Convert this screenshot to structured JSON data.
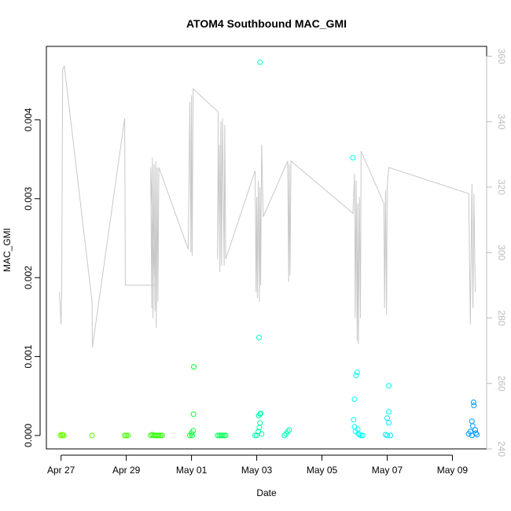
{
  "chart_data": {
    "type": "scatter",
    "title": "ATOM4 Southbound MAC_GMI",
    "xlabel": "Date",
    "ylabel": "MAC_GMI",
    "x_ticks": [
      "Apr 27",
      "Apr 29",
      "May 01",
      "May 03",
      "May 05",
      "May 07",
      "May 09"
    ],
    "x_tick_days": [
      0,
      2,
      4,
      6,
      8,
      10,
      12
    ],
    "xlim_days": [
      -0.45,
      13.05
    ],
    "y_ticks": [
      "0.000",
      "0.001",
      "0.002",
      "0.003",
      "0.004"
    ],
    "y_tick_values": [
      0,
      0.001,
      0.002,
      0.003,
      0.004
    ],
    "ylim": [
      -0.00017,
      0.00493
    ],
    "y2_ticks": [
      "240",
      "260",
      "280",
      "300",
      "320",
      "340",
      "360"
    ],
    "y2_tick_values": [
      240,
      260,
      280,
      300,
      320,
      340,
      360
    ],
    "y2lim": [
      240,
      363
    ],
    "grid": false,
    "series": [
      {
        "type": "scatter",
        "marker": "open-circle",
        "points": [
          {
            "x": -0.02,
            "y": 0.0,
            "c": "#66ff00"
          },
          {
            "x": 0.02,
            "y": 1e-05,
            "c": "#66ff00"
          },
          {
            "x": 0.05,
            "y": 0.0,
            "c": "#66ff00"
          },
          {
            "x": 0.08,
            "y": 0.0,
            "c": "#66ff00"
          },
          {
            "x": 0.95,
            "y": 0.0,
            "c": "#5cff00"
          },
          {
            "x": 1.95,
            "y": 0.0,
            "c": "#44ff00"
          },
          {
            "x": 2.0,
            "y": 0.0,
            "c": "#44ff00"
          },
          {
            "x": 2.05,
            "y": 0.0,
            "c": "#44ff00"
          },
          {
            "x": 2.75,
            "y": 0.0,
            "c": "#2bff00"
          },
          {
            "x": 2.8,
            "y": 1e-05,
            "c": "#2bff00"
          },
          {
            "x": 2.85,
            "y": 0.0,
            "c": "#2bff00"
          },
          {
            "x": 2.9,
            "y": 0.0,
            "c": "#2bff00"
          },
          {
            "x": 2.95,
            "y": 0.0,
            "c": "#2bff00"
          },
          {
            "x": 3.0,
            "y": 0.0,
            "c": "#2bff00"
          },
          {
            "x": 3.05,
            "y": 0.0,
            "c": "#2bff00"
          },
          {
            "x": 3.1,
            "y": 0.0,
            "c": "#2bff00"
          },
          {
            "x": 3.95,
            "y": 0.0,
            "c": "#00ff33"
          },
          {
            "x": 4.0,
            "y": 3e-05,
            "c": "#00ff33"
          },
          {
            "x": 4.05,
            "y": 6e-05,
            "c": "#00ff33"
          },
          {
            "x": 4.07,
            "y": 0.00087,
            "c": "#00ff33"
          },
          {
            "x": 4.06,
            "y": 0.00027,
            "c": "#00ff33"
          },
          {
            "x": 4.02,
            "y": 0.0,
            "c": "#00ff33"
          },
          {
            "x": 4.8,
            "y": 0.0,
            "c": "#00ff55"
          },
          {
            "x": 4.85,
            "y": 0.0,
            "c": "#00ff55"
          },
          {
            "x": 4.9,
            "y": 0.0,
            "c": "#00ff55"
          },
          {
            "x": 4.95,
            "y": 0.0,
            "c": "#00ff55"
          },
          {
            "x": 5.0,
            "y": 0.0,
            "c": "#00ff55"
          },
          {
            "x": 5.05,
            "y": 0.0,
            "c": "#00ff55"
          },
          {
            "x": 5.95,
            "y": 0.0,
            "c": "#00ffaa"
          },
          {
            "x": 6.0,
            "y": 0.0,
            "c": "#00ffaa"
          },
          {
            "x": 6.05,
            "y": 5e-05,
            "c": "#00ffaa"
          },
          {
            "x": 6.08,
            "y": 0.0001,
            "c": "#00ffaa"
          },
          {
            "x": 6.1,
            "y": 0.00016,
            "c": "#00ffaa"
          },
          {
            "x": 6.06,
            "y": 0.00025,
            "c": "#00ffaa"
          },
          {
            "x": 6.1,
            "y": 0.00027,
            "c": "#00ffaa"
          },
          {
            "x": 6.12,
            "y": 0.00028,
            "c": "#00ffaa"
          },
          {
            "x": 6.07,
            "y": 0.00124,
            "c": "#00ffcc"
          },
          {
            "x": 6.1,
            "y": 0.00473,
            "c": "#00ffcc"
          },
          {
            "x": 6.15,
            "y": 2e-05,
            "c": "#00ffaa"
          },
          {
            "x": 6.85,
            "y": 0.0,
            "c": "#00ffbb"
          },
          {
            "x": 6.9,
            "y": 2e-05,
            "c": "#00ffbb"
          },
          {
            "x": 6.95,
            "y": 5e-05,
            "c": "#00ffbb"
          },
          {
            "x": 7.0,
            "y": 7e-05,
            "c": "#00ffbb"
          },
          {
            "x": 8.95,
            "y": 0.00352,
            "c": "#00ffff"
          },
          {
            "x": 8.97,
            "y": 0.0002,
            "c": "#00ffff"
          },
          {
            "x": 9.0,
            "y": 0.00011,
            "c": "#00ffff"
          },
          {
            "x": 9.03,
            "y": 5e-05,
            "c": "#00ffff"
          },
          {
            "x": 9.05,
            "y": 0.00076,
            "c": "#00ffff"
          },
          {
            "x": 9.08,
            "y": 0.0008,
            "c": "#00ffff"
          },
          {
            "x": 9.0,
            "y": 0.00046,
            "c": "#00ffff"
          },
          {
            "x": 9.1,
            "y": 8e-05,
            "c": "#00ffff"
          },
          {
            "x": 9.12,
            "y": 2e-05,
            "c": "#00ffff"
          },
          {
            "x": 9.15,
            "y": 1e-05,
            "c": "#00ffff"
          },
          {
            "x": 9.2,
            "y": 0.0,
            "c": "#00ffff"
          },
          {
            "x": 9.25,
            "y": 0.0,
            "c": "#00ffff"
          },
          {
            "x": 9.95,
            "y": 1e-05,
            "c": "#00eeff"
          },
          {
            "x": 10.0,
            "y": 0.0,
            "c": "#00eeff"
          },
          {
            "x": 10.05,
            "y": 0.00063,
            "c": "#00eeff"
          },
          {
            "x": 10.05,
            "y": 0.0003,
            "c": "#00eeff"
          },
          {
            "x": 10.0,
            "y": 0.00022,
            "c": "#00eeff"
          },
          {
            "x": 10.05,
            "y": 0.00016,
            "c": "#00eeff"
          },
          {
            "x": 10.1,
            "y": 0.0,
            "c": "#00eeff"
          },
          {
            "x": 12.5,
            "y": 2e-05,
            "c": "#0099ff"
          },
          {
            "x": 12.55,
            "y": 5e-05,
            "c": "#0099ff"
          },
          {
            "x": 12.6,
            "y": 0.00018,
            "c": "#0099ff"
          },
          {
            "x": 12.62,
            "y": 0.00012,
            "c": "#0099ff"
          },
          {
            "x": 12.65,
            "y": 0.00042,
            "c": "#0099ff"
          },
          {
            "x": 12.66,
            "y": 0.00038,
            "c": "#0099ff"
          },
          {
            "x": 12.7,
            "y": 7e-05,
            "c": "#0099ff"
          },
          {
            "x": 12.72,
            "y": 3e-05,
            "c": "#0099ff"
          },
          {
            "x": 12.75,
            "y": 1e-05,
            "c": "#0099ff"
          },
          {
            "x": 12.6,
            "y": 0.0,
            "c": "#0099ff"
          }
        ]
      },
      {
        "type": "line",
        "axis": "right",
        "color": "#c8c8c8",
        "points": [
          [
            -0.05,
            288
          ],
          [
            0.0,
            278
          ],
          [
            0.02,
            289
          ],
          [
            0.05,
            356
          ],
          [
            0.1,
            357
          ],
          [
            0.95,
            285
          ],
          [
            0.96,
            271
          ],
          [
            1.95,
            341
          ],
          [
            1.97,
            290
          ],
          [
            2.88,
            290
          ],
          [
            2.75,
            326
          ],
          [
            2.78,
            283
          ],
          [
            2.8,
            329
          ],
          [
            2.82,
            280
          ],
          [
            2.85,
            327
          ],
          [
            2.88,
            282
          ],
          [
            2.9,
            328
          ],
          [
            2.92,
            277
          ],
          [
            2.95,
            326
          ],
          [
            2.97,
            285
          ],
          [
            3.0,
            326
          ],
          [
            3.9,
            301
          ],
          [
            3.95,
            346
          ],
          [
            3.98,
            300
          ],
          [
            4.0,
            348
          ],
          [
            4.02,
            299
          ],
          [
            4.05,
            350
          ],
          [
            4.82,
            343
          ],
          [
            4.8,
            298
          ],
          [
            4.85,
            333
          ],
          [
            4.87,
            294
          ],
          [
            4.9,
            340
          ],
          [
            4.92,
            296
          ],
          [
            4.95,
            341
          ],
          [
            5.0,
            296
          ],
          [
            5.02,
            339
          ],
          [
            5.05,
            298
          ],
          [
            5.95,
            325
          ],
          [
            5.98,
            288
          ],
          [
            6.0,
            317
          ],
          [
            6.02,
            286
          ],
          [
            6.05,
            322
          ],
          [
            6.08,
            285
          ],
          [
            6.1,
            320
          ],
          [
            6.12,
            290
          ],
          [
            6.15,
            333
          ],
          [
            6.2,
            311
          ],
          [
            6.95,
            328
          ],
          [
            6.98,
            291
          ],
          [
            7.0,
            327
          ],
          [
            7.02,
            293
          ],
          [
            7.05,
            328
          ],
          [
            8.95,
            312
          ],
          [
            9.0,
            324
          ],
          [
            9.02,
            280
          ],
          [
            9.05,
            322
          ],
          [
            9.08,
            273
          ],
          [
            9.1,
            315
          ],
          [
            9.12,
            272
          ],
          [
            9.15,
            317
          ],
          [
            9.18,
            280
          ],
          [
            9.2,
            331
          ],
          [
            9.9,
            315
          ],
          [
            9.92,
            283
          ],
          [
            9.95,
            319
          ],
          [
            9.98,
            281
          ],
          [
            10.0,
            320
          ],
          [
            10.05,
            326
          ],
          [
            12.5,
            318
          ],
          [
            12.55,
            278
          ],
          [
            12.6,
            321
          ],
          [
            12.63,
            283
          ],
          [
            12.66,
            318
          ],
          [
            12.7,
            288
          ]
        ]
      }
    ]
  }
}
